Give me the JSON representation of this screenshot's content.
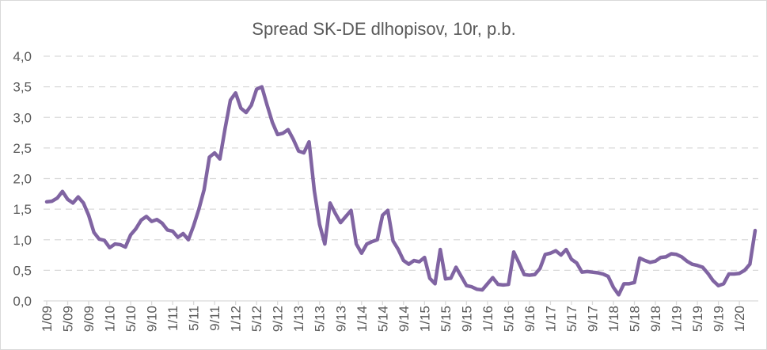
{
  "chart_data": {
    "type": "line",
    "title": "Spread SK-DE dlhopisov, 10r, p.b.",
    "xlabel": "",
    "ylabel": "",
    "ylim": [
      0,
      4
    ],
    "yticks": [
      "0,0",
      "0,5",
      "1,0",
      "1,5",
      "2,0",
      "2,5",
      "3,0",
      "3,5",
      "4,0"
    ],
    "grid": true,
    "legend": "none",
    "line_color": "#8064a2",
    "xtick_labels": [
      "1/09",
      "5/09",
      "9/09",
      "1/10",
      "5/10",
      "9/10",
      "1/11",
      "5/11",
      "9/11",
      "1/12",
      "5/12",
      "9/12",
      "1/13",
      "5/13",
      "9/13",
      "1/14",
      "5/14",
      "9/14",
      "1/15",
      "5/15",
      "9/15",
      "1/16",
      "5/16",
      "9/16",
      "1/17",
      "5/17",
      "9/17",
      "1/18",
      "5/18",
      "9/18",
      "1/19",
      "5/19",
      "9/19",
      "1/20"
    ],
    "series": [
      {
        "values": [
          1.62,
          1.63,
          1.68,
          1.79,
          1.66,
          1.6,
          1.7,
          1.6,
          1.4,
          1.12,
          1.01,
          0.99,
          0.87,
          0.93,
          0.92,
          0.88,
          1.08,
          1.18,
          1.32,
          1.38,
          1.3,
          1.33,
          1.27,
          1.16,
          1.14,
          1.04,
          1.1,
          1.0,
          1.23,
          1.5,
          1.82,
          2.35,
          2.42,
          2.32,
          2.82,
          3.28,
          3.4,
          3.15,
          3.08,
          3.2,
          3.46,
          3.5,
          3.2,
          2.92,
          2.72,
          2.74,
          2.8,
          2.64,
          2.45,
          2.42,
          2.6,
          1.8,
          1.25,
          0.93,
          1.6,
          1.43,
          1.28,
          1.38,
          1.48,
          0.93,
          0.78,
          0.93,
          0.97,
          1.0,
          1.4,
          1.48,
          0.98,
          0.84,
          0.66,
          0.6,
          0.66,
          0.64,
          0.71,
          0.37,
          0.28,
          0.84,
          0.36,
          0.37,
          0.55,
          0.4,
          0.25,
          0.23,
          0.19,
          0.18,
          0.28,
          0.38,
          0.27,
          0.26,
          0.27,
          0.8,
          0.62,
          0.43,
          0.42,
          0.43,
          0.53,
          0.76,
          0.78,
          0.82,
          0.75,
          0.84,
          0.68,
          0.62,
          0.47,
          0.48,
          0.47,
          0.46,
          0.44,
          0.4,
          0.22,
          0.1,
          0.28,
          0.28,
          0.3,
          0.7,
          0.66,
          0.63,
          0.65,
          0.71,
          0.72,
          0.77,
          0.76,
          0.72,
          0.65,
          0.6,
          0.58,
          0.55,
          0.45,
          0.33,
          0.25,
          0.28,
          0.44,
          0.44,
          0.45,
          0.5,
          0.6,
          1.15
        ]
      }
    ]
  }
}
